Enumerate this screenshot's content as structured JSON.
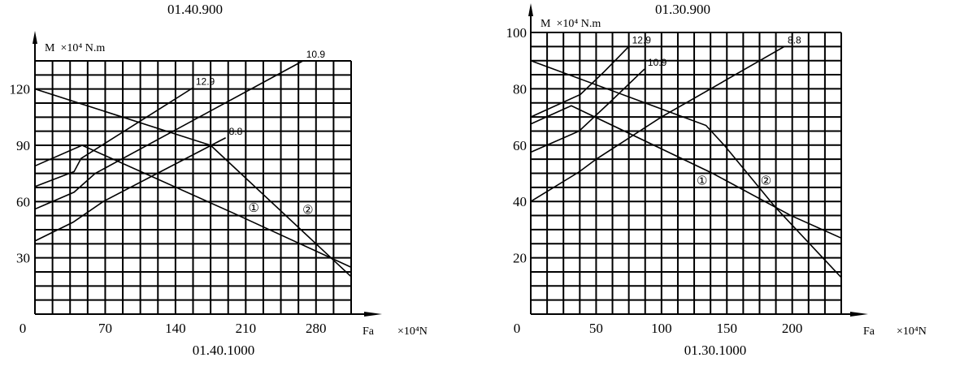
{
  "chart_data": [
    {
      "type": "line",
      "title_top": "01.40.900",
      "title_bottom": "01.40.1000",
      "ylabel": "M  ×10⁴ N.m",
      "xlabel": "Fa",
      "xunit": "×10⁴N",
      "xlim": [
        0,
        315
      ],
      "ylim": [
        0,
        135
      ],
      "grid": true,
      "grid_step": {
        "x": 17.5,
        "y": 7.5
      },
      "xticks": [
        0,
        70,
        140,
        210,
        280
      ],
      "yticks": [
        30,
        60,
        90,
        120
      ],
      "series": [
        {
          "name": "12.9",
          "points": [
            [
              0,
              68
            ],
            [
              39,
              76
            ],
            [
              46,
              83
            ],
            [
              157,
              120.5
            ]
          ]
        },
        {
          "name": "10.9",
          "points": [
            [
              0,
              56
            ],
            [
              39,
              65
            ],
            [
              60,
              75
            ],
            [
              267,
              135
            ]
          ]
        },
        {
          "name": "8.8",
          "points": [
            [
              0,
              39
            ],
            [
              38,
              49
            ],
            [
              68,
              60
            ],
            [
              190,
              94
            ]
          ]
        },
        {
          "name": "",
          "points": [
            [
              0,
              79
            ],
            [
              47,
              90
            ],
            [
              197,
              54
            ],
            [
              315,
              25
            ]
          ]
        },
        {
          "name": "",
          "points": [
            [
              0,
              120
            ],
            [
              175,
              90
            ],
            [
              315,
              20
            ]
          ]
        }
      ],
      "annotations": [
        {
          "text": "①",
          "x": 218,
          "y": 56
        },
        {
          "text": "②",
          "x": 272,
          "y": 55
        }
      ]
    },
    {
      "type": "line",
      "title_top": "01.30.900",
      "title_bottom": "01.30.1000",
      "ylabel": "M  ×10⁴ N.m",
      "xlabel": "Fa",
      "xunit": "×10⁴N",
      "xlim": [
        0,
        237.5
      ],
      "ylim": [
        0,
        100
      ],
      "grid": true,
      "grid_step": {
        "x": 12.5,
        "y": 5
      },
      "xticks": [
        0,
        50,
        100,
        150,
        200
      ],
      "yticks": [
        20,
        40,
        60,
        80,
        100
      ],
      "series": [
        {
          "name": "12.9",
          "points": [
            [
              0,
              70
            ],
            [
              38,
              78
            ],
            [
              56,
              86
            ],
            [
              75,
              95
            ]
          ]
        },
        {
          "name": "10.9",
          "points": [
            [
              0,
              57.5
            ],
            [
              37,
              65
            ],
            [
              60,
              75
            ],
            [
              87,
              87
            ]
          ]
        },
        {
          "name": "8.8",
          "points": [
            [
              0,
              40
            ],
            [
              37,
              50.5
            ],
            [
              50,
              55
            ],
            [
              100,
              70
            ],
            [
              194,
              95
            ]
          ]
        },
        {
          "name": "",
          "points": [
            [
              0,
              67.5
            ],
            [
              31,
              74
            ],
            [
              139,
              50
            ],
            [
              199,
              35
            ],
            [
              237.5,
              27
            ]
          ]
        },
        {
          "name": "",
          "points": [
            [
              0,
              90
            ],
            [
              134,
              67
            ],
            [
              148.5,
              59.7
            ],
            [
              187,
              38
            ],
            [
              237.5,
              13
            ]
          ]
        }
      ],
      "annotations": [
        {
          "text": "①",
          "x": 131,
          "y": 47
        },
        {
          "text": "②",
          "x": 180,
          "y": 47
        }
      ]
    }
  ]
}
